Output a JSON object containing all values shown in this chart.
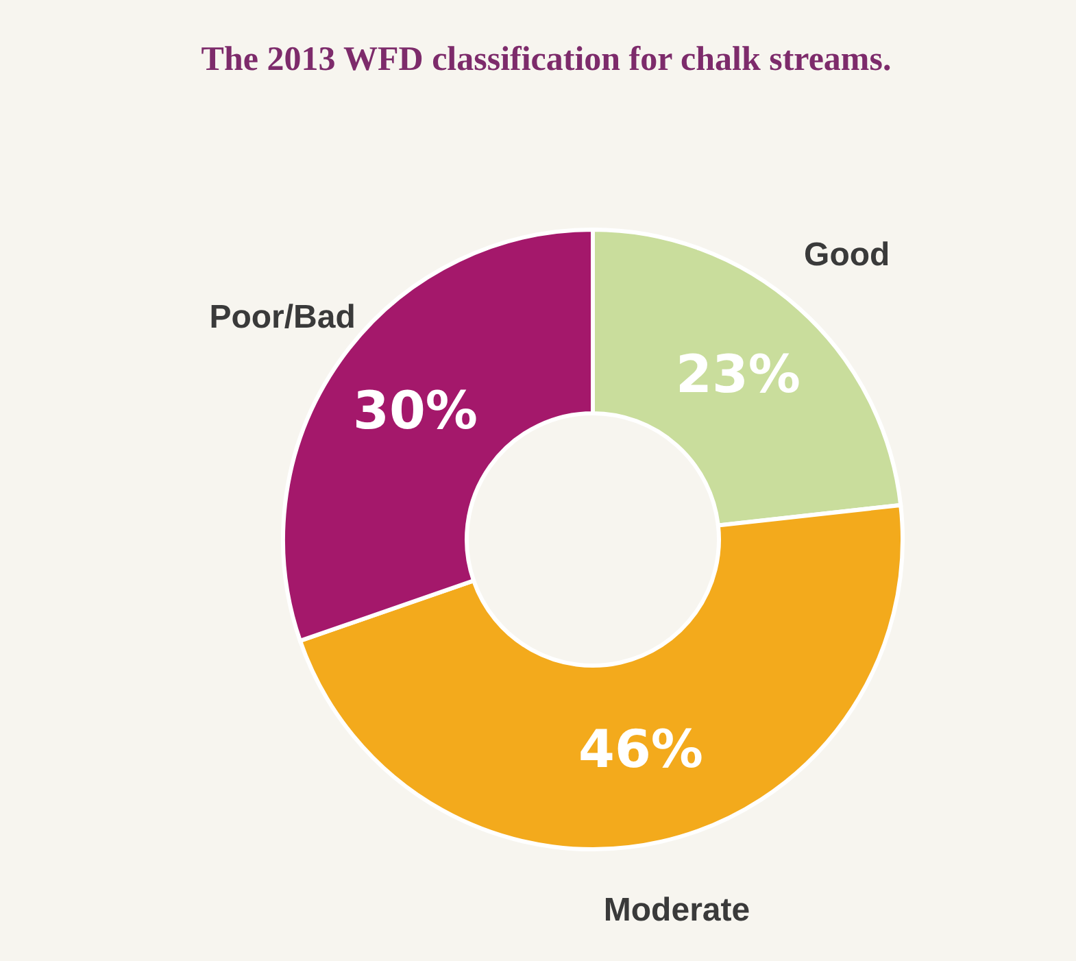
{
  "chart_data": {
    "type": "donut",
    "title": "The 2013 WFD classification for chalk streams.",
    "categories": [
      "Good",
      "Moderate",
      "Poor/Bad"
    ],
    "values": [
      23,
      46,
      30
    ],
    "colors": [
      "#c9dd9c",
      "#f3aa1c",
      "#a4186b"
    ],
    "value_labels": [
      "23%",
      "46%",
      "30%"
    ]
  }
}
